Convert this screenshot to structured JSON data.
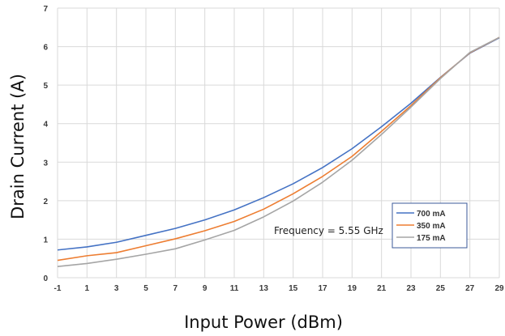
{
  "chart_data": {
    "type": "line",
    "title": "",
    "xlabel": "Input Power (dBm)",
    "ylabel": "Drain Current (A)",
    "xlim": [
      -1,
      29
    ],
    "ylim": [
      0,
      7
    ],
    "x_ticks": [
      -1,
      1,
      3,
      5,
      7,
      9,
      11,
      13,
      15,
      17,
      19,
      21,
      23,
      25,
      27,
      29
    ],
    "y_ticks": [
      0,
      1,
      2,
      3,
      4,
      5,
      6,
      7
    ],
    "grid": true,
    "x": [
      -1,
      1,
      3,
      5,
      7,
      9,
      11,
      13,
      15,
      17,
      19,
      21,
      23,
      25,
      27,
      29
    ],
    "series": [
      {
        "name": "700 mA",
        "color": "#4472c4",
        "values": [
          0.72,
          0.8,
          0.92,
          1.1,
          1.28,
          1.5,
          1.76,
          2.08,
          2.44,
          2.86,
          3.35,
          3.92,
          4.53,
          5.2,
          5.83,
          6.23
        ]
      },
      {
        "name": "350 mA",
        "color": "#ed7d31",
        "values": [
          0.45,
          0.57,
          0.65,
          0.83,
          1.01,
          1.22,
          1.46,
          1.78,
          2.18,
          2.63,
          3.15,
          3.8,
          4.47,
          5.19,
          5.84,
          6.24
        ]
      },
      {
        "name": "175 mA",
        "color": "#a5a5a5",
        "values": [
          0.29,
          0.37,
          0.48,
          0.61,
          0.75,
          0.98,
          1.23,
          1.58,
          1.99,
          2.48,
          3.05,
          3.72,
          4.43,
          5.17,
          5.85,
          6.24
        ]
      }
    ],
    "legend_position": "bottom-right",
    "annotation": "Frequency = 5.55 GHz"
  }
}
